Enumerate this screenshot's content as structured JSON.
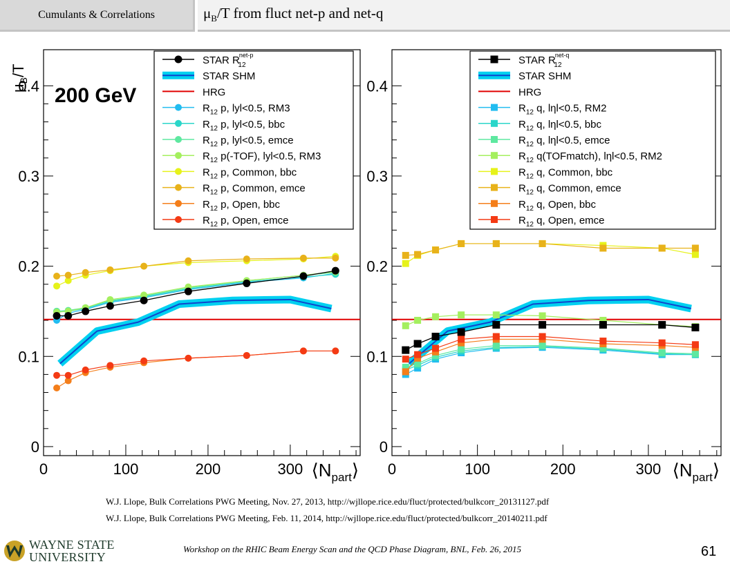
{
  "header": {
    "section": "Cumulants & Correlations",
    "title_pre": "μ",
    "title_sub": "B",
    "title_post": "/T from fluct net-p and net-q"
  },
  "references": [
    "W.J. Llope, Bulk Correlations PWG Meeting, Nov. 27, 2013, http://wjllope.rice.edu/fluct/protected/bulkcorr_20131127.pdf",
    "W.J. Llope, Bulk Correlations PWG Meeting, Feb. 11, 2014, http://wjllope.rice.edu/fluct/protected/bulkcorr_20140211.pdf"
  ],
  "footer": {
    "workshop": "Workshop on the RHIC Beam Energy Scan and the QCD Phase Diagram, BNL, Feb. 26, 2015",
    "page_number": "61",
    "logo_line1": "WAYNE STATE",
    "logo_line2": "UNIVERSITY",
    "logo_color": "#1e3a2b",
    "logo_accent": "#c9a227"
  },
  "chart_data": [
    {
      "type": "line",
      "energy_label": "200 GeV",
      "ylabel": "μB/T",
      "xlabel": "⟨Npart⟩",
      "xlim": [
        0,
        385
      ],
      "ylim": [
        -0.01,
        0.44
      ],
      "xticks": [
        0,
        100,
        200,
        300
      ],
      "yticks": [
        0,
        0.1,
        0.2,
        0.3,
        0.4
      ],
      "marker": "circle",
      "legend_position": "top-right",
      "hrg": {
        "name": "HRG",
        "value": 0.141,
        "color": "#e00000"
      },
      "shm": {
        "name": "STAR SHM",
        "color": "#00d0f0",
        "x": [
          20,
          65,
          115,
          165,
          230,
          300,
          350
        ],
        "y": [
          0.092,
          0.128,
          0.138,
          0.158,
          0.162,
          0.163,
          0.153
        ]
      },
      "star": {
        "name": "STAR R",
        "name_sub": "12",
        "name_sup": "net-p",
        "color": "#000000",
        "x": [
          16,
          30,
          51,
          81,
          122,
          176,
          247,
          316,
          355
        ],
        "y": [
          0.145,
          0.145,
          0.15,
          0.156,
          0.162,
          0.172,
          0.181,
          0.189,
          0.195
        ]
      },
      "series": [
        {
          "name_pre": "R",
          "name_sub": "12",
          "name_post": " p, lyl<0.5, RM3",
          "color": "#21bcf0",
          "x": [
            16,
            30,
            51,
            81,
            122,
            176,
            247,
            316,
            355
          ],
          "y": [
            0.14,
            0.148,
            0.152,
            0.16,
            0.165,
            0.174,
            0.182,
            0.187,
            0.192
          ]
        },
        {
          "name_pre": "R",
          "name_sub": "12",
          "name_post": " p, lyl<0.5, bbc",
          "color": "#2ad6c9",
          "x": [
            16,
            30,
            51,
            81,
            122,
            176,
            247,
            316,
            355
          ],
          "y": [
            0.15,
            0.15,
            0.153,
            0.161,
            0.166,
            0.175,
            0.183,
            0.188,
            0.191
          ]
        },
        {
          "name_pre": "R",
          "name_sub": "12",
          "name_post": " p, lyl<0.5, emce",
          "color": "#5ee8a0",
          "x": [
            16,
            30,
            51,
            81,
            122,
            176,
            247,
            316,
            355
          ],
          "y": [
            0.15,
            0.151,
            0.154,
            0.162,
            0.167,
            0.176,
            0.184,
            0.19,
            0.193
          ]
        },
        {
          "name_pre": "R",
          "name_sub": "12",
          "name_post": " p(-TOF), lyl<0.5, RM3",
          "color": "#a4ef5e",
          "x": [
            16,
            30,
            51,
            81,
            122,
            176,
            247,
            316,
            355
          ],
          "y": [
            0.149,
            0.15,
            0.154,
            0.163,
            0.168,
            0.177,
            0.184,
            0.19,
            0.194
          ]
        },
        {
          "name_pre": "R",
          "name_sub": "12",
          "name_post": " p, Common, bbc",
          "color": "#e6f21a",
          "x": [
            16,
            30,
            51,
            81,
            122,
            176,
            247,
            316,
            355
          ],
          "y": [
            0.178,
            0.184,
            0.19,
            0.195,
            0.2,
            0.204,
            0.206,
            0.208,
            0.211
          ]
        },
        {
          "name_pre": "R",
          "name_sub": "12",
          "name_post": " p, Common, emce",
          "color": "#e8b21a",
          "x": [
            16,
            30,
            51,
            81,
            122,
            176,
            247,
            316,
            355
          ],
          "y": [
            0.189,
            0.19,
            0.193,
            0.196,
            0.2,
            0.206,
            0.208,
            0.209,
            0.209
          ]
        },
        {
          "name_pre": "R",
          "name_sub": "12",
          "name_post": " p, Open, bbc",
          "color": "#f47e1a",
          "x": [
            16,
            30,
            51,
            81,
            122,
            176,
            247,
            316,
            355
          ],
          "y": [
            0.065,
            0.073,
            0.082,
            0.088,
            0.093,
            0.098,
            0.101,
            0.106,
            0.106
          ]
        },
        {
          "name_pre": "R",
          "name_sub": "12",
          "name_post": " p, Open, emce",
          "color": "#f43a14",
          "x": [
            16,
            30,
            51,
            81,
            122,
            176,
            247,
            316,
            355
          ],
          "y": [
            0.079,
            0.079,
            0.085,
            0.09,
            0.095,
            0.098,
            0.101,
            0.106,
            0.106
          ]
        }
      ]
    },
    {
      "type": "line",
      "ylabel": "",
      "xlabel": "⟨Npart⟩",
      "xlim": [
        0,
        385
      ],
      "ylim": [
        -0.01,
        0.44
      ],
      "xticks": [
        0,
        100,
        200,
        300
      ],
      "yticks": [
        0,
        0.1,
        0.2,
        0.3,
        0.4
      ],
      "marker": "square",
      "legend_position": "top-right",
      "hrg": {
        "name": "HRG",
        "value": 0.141,
        "color": "#e00000"
      },
      "shm": {
        "name": "STAR SHM",
        "color": "#00d0f0",
        "x": [
          20,
          65,
          115,
          165,
          230,
          300,
          350
        ],
        "y": [
          0.092,
          0.128,
          0.138,
          0.158,
          0.162,
          0.163,
          0.153
        ]
      },
      "star": {
        "name": "STAR R",
        "name_sub": "12",
        "name_sup": "net-q",
        "color": "#000000",
        "x": [
          16,
          30,
          51,
          81,
          122,
          176,
          247,
          316,
          355
        ],
        "y": [
          0.107,
          0.114,
          0.122,
          0.127,
          0.135,
          0.135,
          0.135,
          0.135,
          0.132
        ]
      },
      "series": [
        {
          "name_pre": "R",
          "name_sub": "12",
          "name_post": " q, lηl<0.5, RM2",
          "color": "#21bcf0",
          "x": [
            16,
            30,
            51,
            81,
            122,
            176,
            247,
            316,
            355
          ],
          "y": [
            0.08,
            0.087,
            0.097,
            0.104,
            0.109,
            0.11,
            0.107,
            0.102,
            0.102
          ]
        },
        {
          "name_pre": "R",
          "name_sub": "12",
          "name_post": " q, lηl<0.5, bbc",
          "color": "#2ad6c9",
          "x": [
            16,
            30,
            51,
            81,
            122,
            176,
            247,
            316,
            355
          ],
          "y": [
            0.085,
            0.09,
            0.099,
            0.106,
            0.11,
            0.111,
            0.108,
            0.103,
            0.102
          ]
        },
        {
          "name_pre": "R",
          "name_sub": "12",
          "name_post": " q, lηl<0.5, emce",
          "color": "#5ee8a0",
          "x": [
            16,
            30,
            51,
            81,
            122,
            176,
            247,
            316,
            355
          ],
          "y": [
            0.088,
            0.092,
            0.101,
            0.108,
            0.112,
            0.112,
            0.109,
            0.104,
            0.103
          ]
        },
        {
          "name_pre": "R",
          "name_sub": "12",
          "name_post": " q(TOFmatch), lηl<0.5, RM2",
          "color": "#a4ef5e",
          "x": [
            16,
            30,
            51,
            81,
            122,
            176,
            247,
            316,
            355
          ],
          "y": [
            0.134,
            0.14,
            0.144,
            0.146,
            0.146,
            0.145,
            0.14,
            0.135,
            0.133
          ]
        },
        {
          "name_pre": "R",
          "name_sub": "12",
          "name_post": " q, Common, bbc",
          "color": "#e6f21a",
          "x": [
            16,
            30,
            51,
            81,
            122,
            176,
            247,
            316,
            355
          ],
          "y": [
            0.203,
            0.212,
            0.218,
            0.225,
            0.225,
            0.225,
            0.223,
            0.22,
            0.213
          ]
        },
        {
          "name_pre": "R",
          "name_sub": "12",
          "name_post": " q, Common, emce",
          "color": "#e8b21a",
          "x": [
            16,
            30,
            51,
            81,
            122,
            176,
            247,
            316,
            355
          ],
          "y": [
            0.212,
            0.213,
            0.218,
            0.225,
            0.225,
            0.225,
            0.22,
            0.22,
            0.22
          ]
        },
        {
          "name_pre": "R",
          "name_sub": "12",
          "name_post": " q, Open, bbc",
          "color": "#f47e1a",
          "x": [
            16,
            30,
            51,
            81,
            122,
            176,
            247,
            316,
            355
          ],
          "y": [
            0.083,
            0.098,
            0.105,
            0.115,
            0.119,
            0.119,
            0.114,
            0.112,
            0.11
          ]
        },
        {
          "name_pre": "R",
          "name_sub": "12",
          "name_post": " q, Open, emce",
          "color": "#f43a14",
          "x": [
            16,
            30,
            51,
            81,
            122,
            176,
            247,
            316,
            355
          ],
          "y": [
            0.097,
            0.102,
            0.109,
            0.119,
            0.122,
            0.122,
            0.117,
            0.115,
            0.113
          ]
        }
      ]
    }
  ]
}
